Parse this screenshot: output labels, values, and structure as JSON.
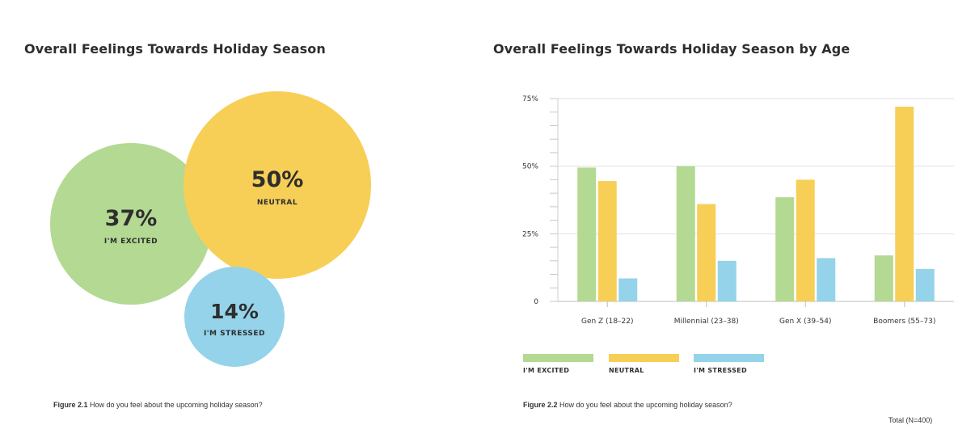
{
  "left": {
    "title": "Overall Feelings Towards Holiday Season",
    "caption_bold": "Figure 2.1",
    "caption_text": "How do you feel about the upcoming holiday season?"
  },
  "right": {
    "title": "Overall Feelings Towards Holiday Season by Age",
    "caption_bold": "Figure 2.2",
    "caption_text": "How do you feel about the upcoming holiday season?",
    "total": "Total (N=400)"
  },
  "colors": {
    "excited": "#b3d993",
    "neutral": "#f7cf57",
    "stressed": "#94d3ea"
  },
  "chart_data": [
    {
      "type": "bubble",
      "title": "Overall Feelings Towards Holiday Season",
      "items": [
        {
          "label": "I'M EXCITED",
          "value": 37,
          "value_label": "37%",
          "color": "#b3d993"
        },
        {
          "label": "NEUTRAL",
          "value": 50,
          "value_label": "50%",
          "color": "#f7cf57"
        },
        {
          "label": "I'M STRESSED",
          "value": 14,
          "value_label": "14%",
          "color": "#94d3ea"
        }
      ]
    },
    {
      "type": "bar",
      "title": "Overall Feelings Towards Holiday Season by Age",
      "categories": [
        "Gen Z (18–22)",
        "Millennial (23–38)",
        "Gen X (39–54)",
        "Boomers (55–73)"
      ],
      "series": [
        {
          "name": "I'M EXCITED",
          "color": "#b3d993",
          "values": [
            49.5,
            50,
            38.5,
            17
          ]
        },
        {
          "name": "NEUTRAL",
          "color": "#f7cf57",
          "values": [
            44.5,
            36,
            45,
            72
          ]
        },
        {
          "name": "I'M STRESSED",
          "color": "#94d3ea",
          "values": [
            8.5,
            15,
            16,
            12
          ]
        }
      ],
      "ylim": [
        0,
        75
      ],
      "yticks": [
        0,
        25,
        50,
        75
      ],
      "ytick_labels": [
        "0",
        "25%",
        "50%",
        "75%"
      ],
      "grid": true,
      "legend": "bottom-left"
    }
  ]
}
